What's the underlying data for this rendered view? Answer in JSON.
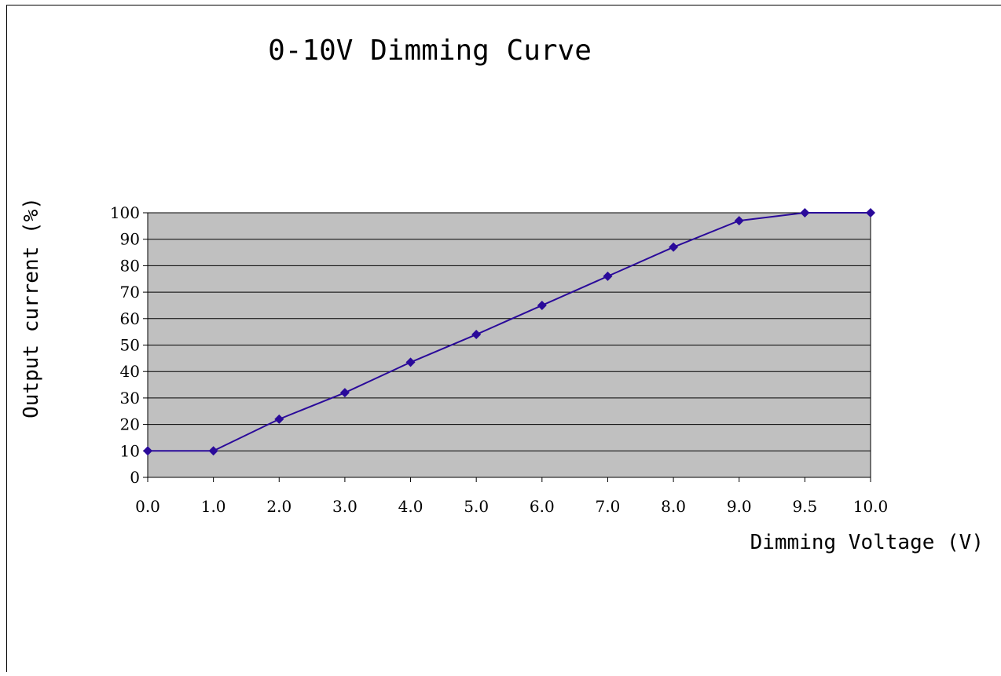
{
  "chart_data": {
    "type": "line",
    "title": "0-10V Dimming Curve",
    "xlabel": "Dimming Voltage (V)",
    "ylabel": "Output current (%)",
    "categories": [
      "0.0",
      "1.0",
      "2.0",
      "3.0",
      "4.0",
      "5.0",
      "6.0",
      "7.0",
      "8.0",
      "9.0",
      "9.5",
      "10.0"
    ],
    "values": [
      10,
      10,
      22,
      32,
      43.5,
      54,
      65,
      76,
      87,
      97,
      100,
      100
    ],
    "ylim": [
      0,
      100
    ],
    "yticks": [
      "0",
      "10",
      "20",
      "30",
      "40",
      "50",
      "60",
      "70",
      "80",
      "90",
      "100"
    ],
    "grid": true,
    "colors": {
      "plot_background": "#c0c0c0",
      "line": "#2a0a9a",
      "marker": "#2a0a9a",
      "gridline": "#000000"
    }
  }
}
